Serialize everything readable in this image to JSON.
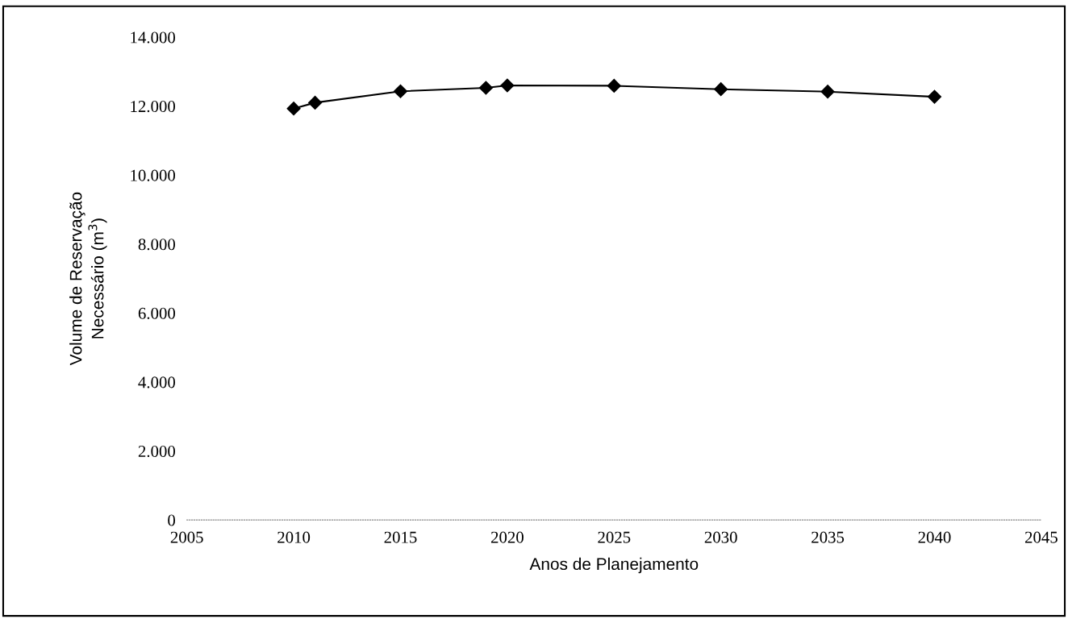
{
  "chart_data": {
    "type": "line",
    "xlabel": "Anos de Planejamento",
    "ylabel": "Volume de Reservação\nNecessário (m$^{3}$)",
    "x": [
      2010,
      2011,
      2015,
      2019,
      2020,
      2025,
      2030,
      2035,
      2040
    ],
    "series": [
      {
        "color": "#000000",
        "values": [
          11930,
          12100,
          12430,
          12530,
          12600,
          12590,
          12490,
          12420,
          12270
        ]
      }
    ],
    "xlim": [
      2005,
      2045
    ],
    "xticks": [
      2005,
      2010,
      2015,
      2020,
      2025,
      2030,
      2035,
      2040,
      2045
    ],
    "ylim": [
      0,
      14000
    ],
    "yticks": [
      {
        "value": 0,
        "label": "0"
      },
      {
        "value": 2000,
        "label": "2.000"
      },
      {
        "value": 4000,
        "label": "4.000"
      },
      {
        "value": 6000,
        "label": "6.000"
      },
      {
        "value": 8000,
        "label": "8.000"
      },
      {
        "value": 10000,
        "label": "10.000"
      },
      {
        "value": 12000,
        "label": "12.000"
      },
      {
        "value": 14000,
        "label": "14.000"
      }
    ],
    "marker": "diamond",
    "line_style": "solid",
    "grid": false,
    "legend": false
  }
}
